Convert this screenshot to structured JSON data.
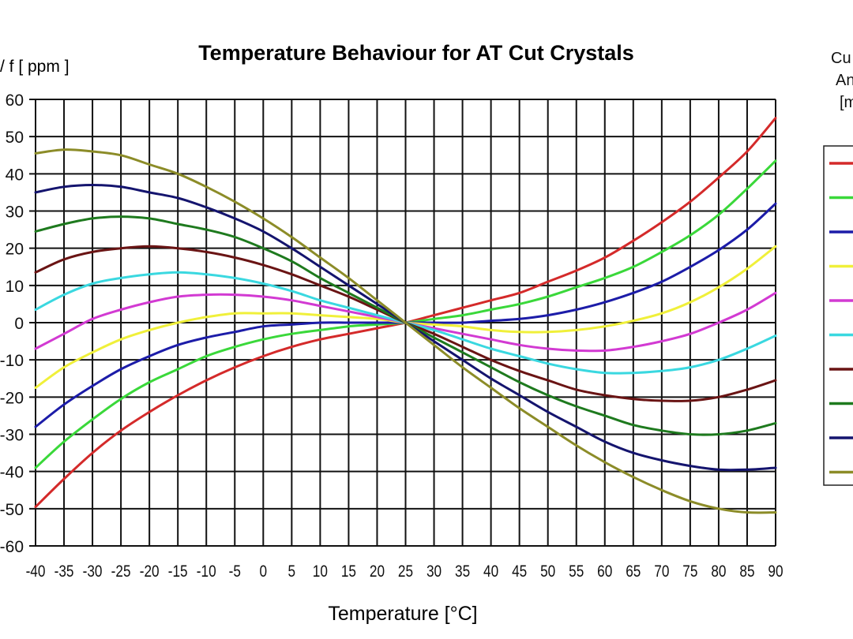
{
  "chart_data": {
    "type": "line",
    "title": "Temperature Behaviour for AT Cut Crystals",
    "xlabel": "Temperature [°C]",
    "ylabel": "/ f [ ppm ]",
    "legend_title_lines": [
      "Cu",
      "An",
      "[m"
    ],
    "legend_position": "right",
    "grid": true,
    "xlim": [
      -40,
      90
    ],
    "ylim": [
      -60,
      60
    ],
    "x_ticks": [
      -40,
      -35,
      -30,
      -25,
      -20,
      -15,
      -10,
      -5,
      0,
      5,
      10,
      15,
      20,
      25,
      30,
      35,
      40,
      45,
      50,
      55,
      60,
      65,
      70,
      75,
      80,
      85,
      90
    ],
    "y_ticks": [
      60,
      50,
      40,
      30,
      20,
      10,
      0,
      -10,
      -20,
      -30,
      -40,
      -50,
      -60
    ],
    "x": [
      -40,
      -35,
      -30,
      -25,
      -20,
      -15,
      -10,
      -5,
      0,
      5,
      10,
      15,
      20,
      25,
      30,
      35,
      40,
      45,
      50,
      55,
      60,
      65,
      70,
      75,
      80,
      85,
      90
    ],
    "series": [
      {
        "name": "",
        "color": "#d42a2a",
        "values": [
          -49.5,
          -42,
          -35,
          -29,
          -24,
          -19.5,
          -15.5,
          -12,
          -9,
          -6.5,
          -4.5,
          -3,
          -1.5,
          0,
          2,
          4,
          6,
          8,
          11,
          14,
          17.5,
          22,
          27,
          32.5,
          39,
          46,
          55
        ]
      },
      {
        "name": "",
        "color": "#3ad83a",
        "values": [
          -39,
          -32,
          -26,
          -20.5,
          -16,
          -12.5,
          -9,
          -6.5,
          -4.5,
          -3,
          -2,
          -1,
          -0.5,
          0,
          1,
          2,
          3.5,
          5,
          7,
          9.5,
          12,
          15,
          19,
          23.5,
          29,
          36,
          43.5
        ]
      },
      {
        "name": "",
        "color": "#1c1ca8",
        "values": [
          -28,
          -22,
          -17,
          -12.5,
          -9,
          -6,
          -4,
          -2.5,
          -1,
          -0.5,
          0,
          0,
          0,
          0,
          0,
          0,
          0.5,
          1,
          2,
          3.5,
          5.5,
          8,
          11,
          15,
          19.5,
          25,
          32
        ]
      },
      {
        "name": "",
        "color": "#f0f03a",
        "values": [
          -17.5,
          -12,
          -8,
          -4.5,
          -2,
          0,
          1.5,
          2.5,
          2.5,
          2.5,
          2,
          1.5,
          1,
          0,
          -0.5,
          -1,
          -2,
          -2.5,
          -2.5,
          -2,
          -1,
          0.5,
          2.5,
          5.5,
          9.5,
          14.5,
          20.5
        ]
      },
      {
        "name": "",
        "color": "#d23ad2",
        "values": [
          -7,
          -3,
          1,
          3.5,
          5.5,
          7,
          7.5,
          7.5,
          7,
          6,
          4.5,
          3,
          1.5,
          0,
          -1.5,
          -3,
          -4.5,
          -6,
          -7,
          -7.5,
          -7.5,
          -6.5,
          -5,
          -3,
          0,
          3.5,
          8
        ]
      },
      {
        "name": "",
        "color": "#3ad8e0",
        "values": [
          3.5,
          7.5,
          10.5,
          12,
          13,
          13.5,
          13,
          12,
          10.5,
          8.5,
          6,
          4,
          2,
          0,
          -2,
          -4.5,
          -7,
          -9,
          -11,
          -12.5,
          -13.5,
          -13.5,
          -13,
          -12,
          -10,
          -7,
          -3.5
        ]
      },
      {
        "name": "",
        "color": "#6a1414",
        "values": [
          13.5,
          17,
          19,
          20,
          20.5,
          20,
          19,
          17.5,
          15.5,
          13,
          10,
          7,
          3.5,
          0,
          -3,
          -6.5,
          -10,
          -13,
          -15.5,
          -18,
          -19.5,
          -20.5,
          -21,
          -21,
          -20,
          -18,
          -15.5
        ]
      },
      {
        "name": "",
        "color": "#1e7a1e",
        "values": [
          24.5,
          26.5,
          28,
          28.5,
          28,
          26.5,
          25,
          23,
          20,
          16.5,
          12,
          8,
          4,
          0,
          -4,
          -8,
          -12,
          -16,
          -19.5,
          -22.5,
          -25,
          -27.5,
          -29,
          -30,
          -30,
          -29,
          -27
        ]
      },
      {
        "name": "",
        "color": "#14146e",
        "values": [
          35,
          36.5,
          37,
          36.5,
          35,
          33.5,
          31,
          28,
          24.5,
          20,
          15,
          10,
          5,
          0,
          -5,
          -10,
          -15,
          -19.5,
          -24,
          -28,
          -32,
          -35,
          -37,
          -38.5,
          -39.5,
          -39.5,
          -39
        ]
      },
      {
        "name": "",
        "color": "#8c8c28",
        "values": [
          45.5,
          46.5,
          46,
          45,
          42.5,
          40,
          36.5,
          32.5,
          28,
          23,
          17.5,
          12,
          6,
          0,
          -6,
          -12,
          -17.5,
          -23,
          -28,
          -33,
          -37.5,
          -41.5,
          -45,
          -48,
          -50,
          -51,
          -51
        ]
      }
    ]
  }
}
